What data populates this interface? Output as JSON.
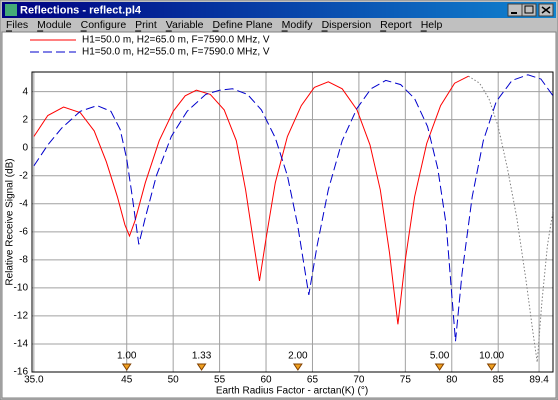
{
  "window": {
    "title": "Reflections - reflect.pl4",
    "menu": [
      "Files",
      "Module",
      "Configure",
      "Print",
      "Variable",
      "Define Plane",
      "Modify",
      "Dispersion",
      "Report",
      "Help"
    ]
  },
  "chart_data": {
    "type": "line",
    "x_label": "Earth Radius Factor - arctan(K) (°)",
    "y_label": "Relative Receive Signal (dB)",
    "xlim": [
      34.8,
      90.9
    ],
    "ylim": [
      -16,
      5.4
    ],
    "xticks": [
      {
        "value": 35,
        "label": "35.0"
      },
      45,
      50,
      55,
      60,
      65,
      70,
      75,
      80,
      85,
      89.4
    ],
    "yticks": [
      4,
      2,
      0,
      -2,
      -4,
      -6,
      -8,
      -10,
      -12,
      -14,
      -16
    ],
    "grid": true,
    "k_markers": [
      {
        "x": 45,
        "label": "1.00"
      },
      {
        "x": 53.06,
        "label": "1.33"
      },
      {
        "x": 63.43,
        "label": "2.00"
      },
      {
        "x": 78.69,
        "label": "5.00"
      },
      {
        "x": 84.29,
        "label": "10.00"
      }
    ],
    "series": [
      {
        "name": "H1=50.0 m, H2=65.0 m, F=7590.0 MHz, V",
        "color": "#ff0000",
        "dash": "solid",
        "x": [
          35,
          36.5,
          38.2,
          40,
          41.5,
          42.8,
          44,
          44.8,
          45.3,
          45.9,
          47,
          48.5,
          50,
          51.3,
          52.5,
          54,
          55.5,
          56.8,
          57.8,
          58.6,
          59.3,
          60,
          61,
          62.3,
          63.8,
          65.2,
          66.7,
          68.2,
          69.8,
          71.2,
          72.3,
          73.3,
          74.2,
          75,
          76,
          77.3,
          78.8,
          80.3,
          81.8
        ],
        "values": [
          0.8,
          2.3,
          2.9,
          2.5,
          1.2,
          -1,
          -3.5,
          -5.5,
          -6.3,
          -5.2,
          -2.5,
          0.5,
          2.6,
          3.7,
          4.1,
          3.8,
          2.7,
          0.5,
          -3,
          -6.5,
          -9.5,
          -6.5,
          -2.5,
          0.8,
          3,
          4.3,
          4.7,
          4.2,
          2.7,
          0.2,
          -3,
          -7.5,
          -12.6,
          -8,
          -3.5,
          0.3,
          3,
          4.6,
          5.1
        ]
      },
      {
        "name": "H1=50.0 m, H2=55.0 m, F=7590.0 MHz, V",
        "color": "#0000cc",
        "dash": "dashed",
        "x": [
          35,
          36.5,
          38,
          40,
          41.8,
          43.3,
          44.3,
          45,
          45.6,
          46.3,
          47,
          48.2,
          49.8,
          51.5,
          53.5,
          55,
          56.4,
          58,
          59.5,
          61,
          62.3,
          63.4,
          64.6,
          65.5,
          66.7,
          68.2,
          69.8,
          71.3,
          72.9,
          74.5,
          76,
          77.4,
          78.5,
          79.4,
          80.4,
          81.1,
          82.2,
          83.4,
          84.8,
          86.5,
          88.2,
          89.6,
          90.9
        ],
        "values": [
          -1.3,
          0.2,
          1.4,
          2.6,
          3.0,
          2.6,
          1.3,
          -0.8,
          -3.5,
          -6.9,
          -5,
          -2,
          0.8,
          2.6,
          3.8,
          4.1,
          4.2,
          3.8,
          2.7,
          0.7,
          -2,
          -5.5,
          -10.5,
          -7,
          -3,
          0.5,
          2.8,
          4.2,
          4.8,
          4.5,
          3.5,
          1.5,
          -1.5,
          -5.5,
          -13.8,
          -9,
          -3.5,
          0.5,
          3.3,
          4.8,
          5.2,
          4.9,
          3.7
        ]
      },
      {
        "color": "#808080",
        "dash": "dotted",
        "x": [
          81.8,
          83,
          84,
          85,
          86,
          87,
          88,
          88.7,
          89.2,
          89.7,
          90.3,
          90.9
        ],
        "values": [
          5.1,
          4.6,
          3.5,
          1.5,
          -1.5,
          -5,
          -9.5,
          -13,
          -15.3,
          -11,
          -7,
          -4.5
        ]
      }
    ]
  }
}
